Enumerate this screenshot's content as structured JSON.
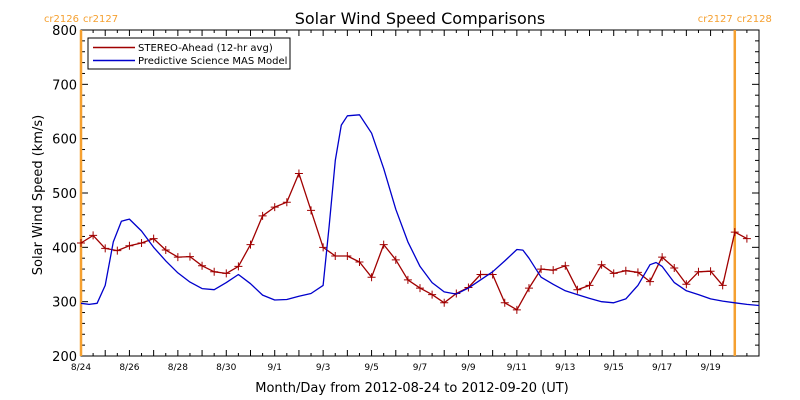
{
  "chart_data": {
    "type": "line",
    "title": "Solar Wind Speed Comparisons",
    "xlabel": "Month/Day from 2012-08-24 to 2012-09-20 (UT)",
    "ylabel": "Solar Wind Speed (km/s)",
    "xlim": [
      "2012-08-24",
      "2012-09-21"
    ],
    "ylim": [
      200,
      800
    ],
    "y_ticks": [
      200,
      300,
      400,
      500,
      600,
      700,
      800
    ],
    "x_tick_labels": [
      {
        "date": "2012-08-24",
        "label": "8/24"
      },
      {
        "date": "2012-08-26",
        "label": "8/26"
      },
      {
        "date": "2012-08-28",
        "label": "8/28"
      },
      {
        "date": "2012-08-30",
        "label": "8/30"
      },
      {
        "date": "2012-09-01",
        "label": "9/1"
      },
      {
        "date": "2012-09-03",
        "label": "9/3"
      },
      {
        "date": "2012-09-05",
        "label": "9/5"
      },
      {
        "date": "2012-09-07",
        "label": "9/7"
      },
      {
        "date": "2012-09-09",
        "label": "9/9"
      },
      {
        "date": "2012-09-11",
        "label": "9/11"
      },
      {
        "date": "2012-09-13",
        "label": "9/13"
      },
      {
        "date": "2012-09-15",
        "label": "9/15"
      },
      {
        "date": "2012-09-17",
        "label": "9/17"
      },
      {
        "date": "2012-09-19",
        "label": "9/19"
      }
    ],
    "legend_position": "top-left",
    "rotation_markers": [
      {
        "date": "2012-08-24",
        "labels": [
          "cr2126",
          "cr2127"
        ],
        "color": "#f5a030"
      },
      {
        "date": "2012-09-20",
        "labels": [
          "cr2127",
          "cr2128"
        ],
        "color": "#f5a030"
      }
    ],
    "series": [
      {
        "name": "STEREO-Ahead (12-hr avg)",
        "color": "#a00000",
        "marker": "plus",
        "points": [
          [
            "2012-08-24T00:00",
            408
          ],
          [
            "2012-08-24T12:00",
            422
          ],
          [
            "2012-08-25T00:00",
            398
          ],
          [
            "2012-08-25T12:00",
            394
          ],
          [
            "2012-08-26T00:00",
            403
          ],
          [
            "2012-08-26T12:00",
            408
          ],
          [
            "2012-08-27T00:00",
            416
          ],
          [
            "2012-08-27T12:00",
            395
          ],
          [
            "2012-08-28T00:00",
            382
          ],
          [
            "2012-08-28T12:00",
            383
          ],
          [
            "2012-08-29T00:00",
            366
          ],
          [
            "2012-08-29T12:00",
            355
          ],
          [
            "2012-08-30T00:00",
            352
          ],
          [
            "2012-08-30T12:00",
            365
          ],
          [
            "2012-08-31T00:00",
            405
          ],
          [
            "2012-08-31T12:00",
            458
          ],
          [
            "2012-09-01T00:00",
            474
          ],
          [
            "2012-09-01T12:00",
            483
          ],
          [
            "2012-09-02T00:00",
            536
          ],
          [
            "2012-09-02T12:00",
            468
          ],
          [
            "2012-09-03T00:00",
            400
          ],
          [
            "2012-09-03T12:00",
            384
          ],
          [
            "2012-09-04T00:00",
            384
          ],
          [
            "2012-09-04T12:00",
            373
          ],
          [
            "2012-09-05T00:00",
            345
          ],
          [
            "2012-09-05T12:00",
            405
          ],
          [
            "2012-09-06T00:00",
            377
          ],
          [
            "2012-09-06T12:00",
            340
          ],
          [
            "2012-09-07T00:00",
            325
          ],
          [
            "2012-09-07T12:00",
            313
          ],
          [
            "2012-09-08T00:00",
            298
          ],
          [
            "2012-09-08T12:00",
            315
          ],
          [
            "2012-09-09T00:00",
            326
          ],
          [
            "2012-09-09T12:00",
            350
          ],
          [
            "2012-09-10T00:00",
            350
          ],
          [
            "2012-09-10T12:00",
            298
          ],
          [
            "2012-09-11T00:00",
            285
          ],
          [
            "2012-09-11T12:00",
            325
          ],
          [
            "2012-09-12T00:00",
            360
          ],
          [
            "2012-09-12T12:00",
            358
          ],
          [
            "2012-09-13T00:00",
            366
          ],
          [
            "2012-09-13T12:00",
            322
          ],
          [
            "2012-09-14T00:00",
            330
          ],
          [
            "2012-09-14T12:00",
            368
          ],
          [
            "2012-09-15T00:00",
            352
          ],
          [
            "2012-09-15T12:00",
            357
          ],
          [
            "2012-09-16T00:00",
            354
          ],
          [
            "2012-09-16T12:00",
            337
          ],
          [
            "2012-09-17T00:00",
            382
          ],
          [
            "2012-09-17T12:00",
            362
          ],
          [
            "2012-09-18T00:00",
            332
          ],
          [
            "2012-09-18T12:00",
            355
          ],
          [
            "2012-09-19T00:00",
            356
          ],
          [
            "2012-09-19T12:00",
            330
          ],
          [
            "2012-09-20T00:00",
            428
          ],
          [
            "2012-09-20T12:00",
            416
          ]
        ]
      },
      {
        "name": "Predictive Science MAS Model",
        "color": "#0000cc",
        "marker": "none",
        "points": [
          [
            "2012-08-24T00:00",
            297
          ],
          [
            "2012-08-24T08:00",
            295
          ],
          [
            "2012-08-24T16:00",
            297
          ],
          [
            "2012-08-25T00:00",
            330
          ],
          [
            "2012-08-25T08:00",
            410
          ],
          [
            "2012-08-25T16:00",
            448
          ],
          [
            "2012-08-26T00:00",
            452
          ],
          [
            "2012-08-26T12:00",
            430
          ],
          [
            "2012-08-27T00:00",
            400
          ],
          [
            "2012-08-27T12:00",
            375
          ],
          [
            "2012-08-28T00:00",
            353
          ],
          [
            "2012-08-28T12:00",
            336
          ],
          [
            "2012-08-29T00:00",
            324
          ],
          [
            "2012-08-29T12:00",
            322
          ],
          [
            "2012-08-30T00:00",
            335
          ],
          [
            "2012-08-30T12:00",
            350
          ],
          [
            "2012-08-31T00:00",
            333
          ],
          [
            "2012-08-31T12:00",
            312
          ],
          [
            "2012-09-01T00:00",
            303
          ],
          [
            "2012-09-01T12:00",
            304
          ],
          [
            "2012-09-02T00:00",
            310
          ],
          [
            "2012-09-02T12:00",
            315
          ],
          [
            "2012-09-03T00:00",
            330
          ],
          [
            "2012-09-03T06:00",
            440
          ],
          [
            "2012-09-03T12:00",
            560
          ],
          [
            "2012-09-03T18:00",
            625
          ],
          [
            "2012-09-04T00:00",
            642
          ],
          [
            "2012-09-04T12:00",
            644
          ],
          [
            "2012-09-05T00:00",
            610
          ],
          [
            "2012-09-05T12:00",
            545
          ],
          [
            "2012-09-06T00:00",
            470
          ],
          [
            "2012-09-06T12:00",
            410
          ],
          [
            "2012-09-07T00:00",
            365
          ],
          [
            "2012-09-07T12:00",
            335
          ],
          [
            "2012-09-08T00:00",
            318
          ],
          [
            "2012-09-08T12:00",
            314
          ],
          [
            "2012-09-09T00:00",
            325
          ],
          [
            "2012-09-09T12:00",
            340
          ],
          [
            "2012-09-10T00:00",
            355
          ],
          [
            "2012-09-10T12:00",
            375
          ],
          [
            "2012-09-11T00:00",
            396
          ],
          [
            "2012-09-11T06:00",
            395
          ],
          [
            "2012-09-11T12:00",
            380
          ],
          [
            "2012-09-12T00:00",
            345
          ],
          [
            "2012-09-12T12:00",
            332
          ],
          [
            "2012-09-13T00:00",
            320
          ],
          [
            "2012-09-13T12:00",
            313
          ],
          [
            "2012-09-14T00:00",
            306
          ],
          [
            "2012-09-14T12:00",
            300
          ],
          [
            "2012-09-15T00:00",
            298
          ],
          [
            "2012-09-15T12:00",
            305
          ],
          [
            "2012-09-16T00:00",
            330
          ],
          [
            "2012-09-16T12:00",
            368
          ],
          [
            "2012-09-16T18:00",
            372
          ],
          [
            "2012-09-17T00:00",
            365
          ],
          [
            "2012-09-17T12:00",
            335
          ],
          [
            "2012-09-18T00:00",
            320
          ],
          [
            "2012-09-18T12:00",
            313
          ],
          [
            "2012-09-19T00:00",
            305
          ],
          [
            "2012-09-19T12:00",
            301
          ],
          [
            "2012-09-20T00:00",
            298
          ],
          [
            "2012-09-20T12:00",
            295
          ],
          [
            "2012-09-21T00:00",
            293
          ]
        ]
      }
    ]
  }
}
